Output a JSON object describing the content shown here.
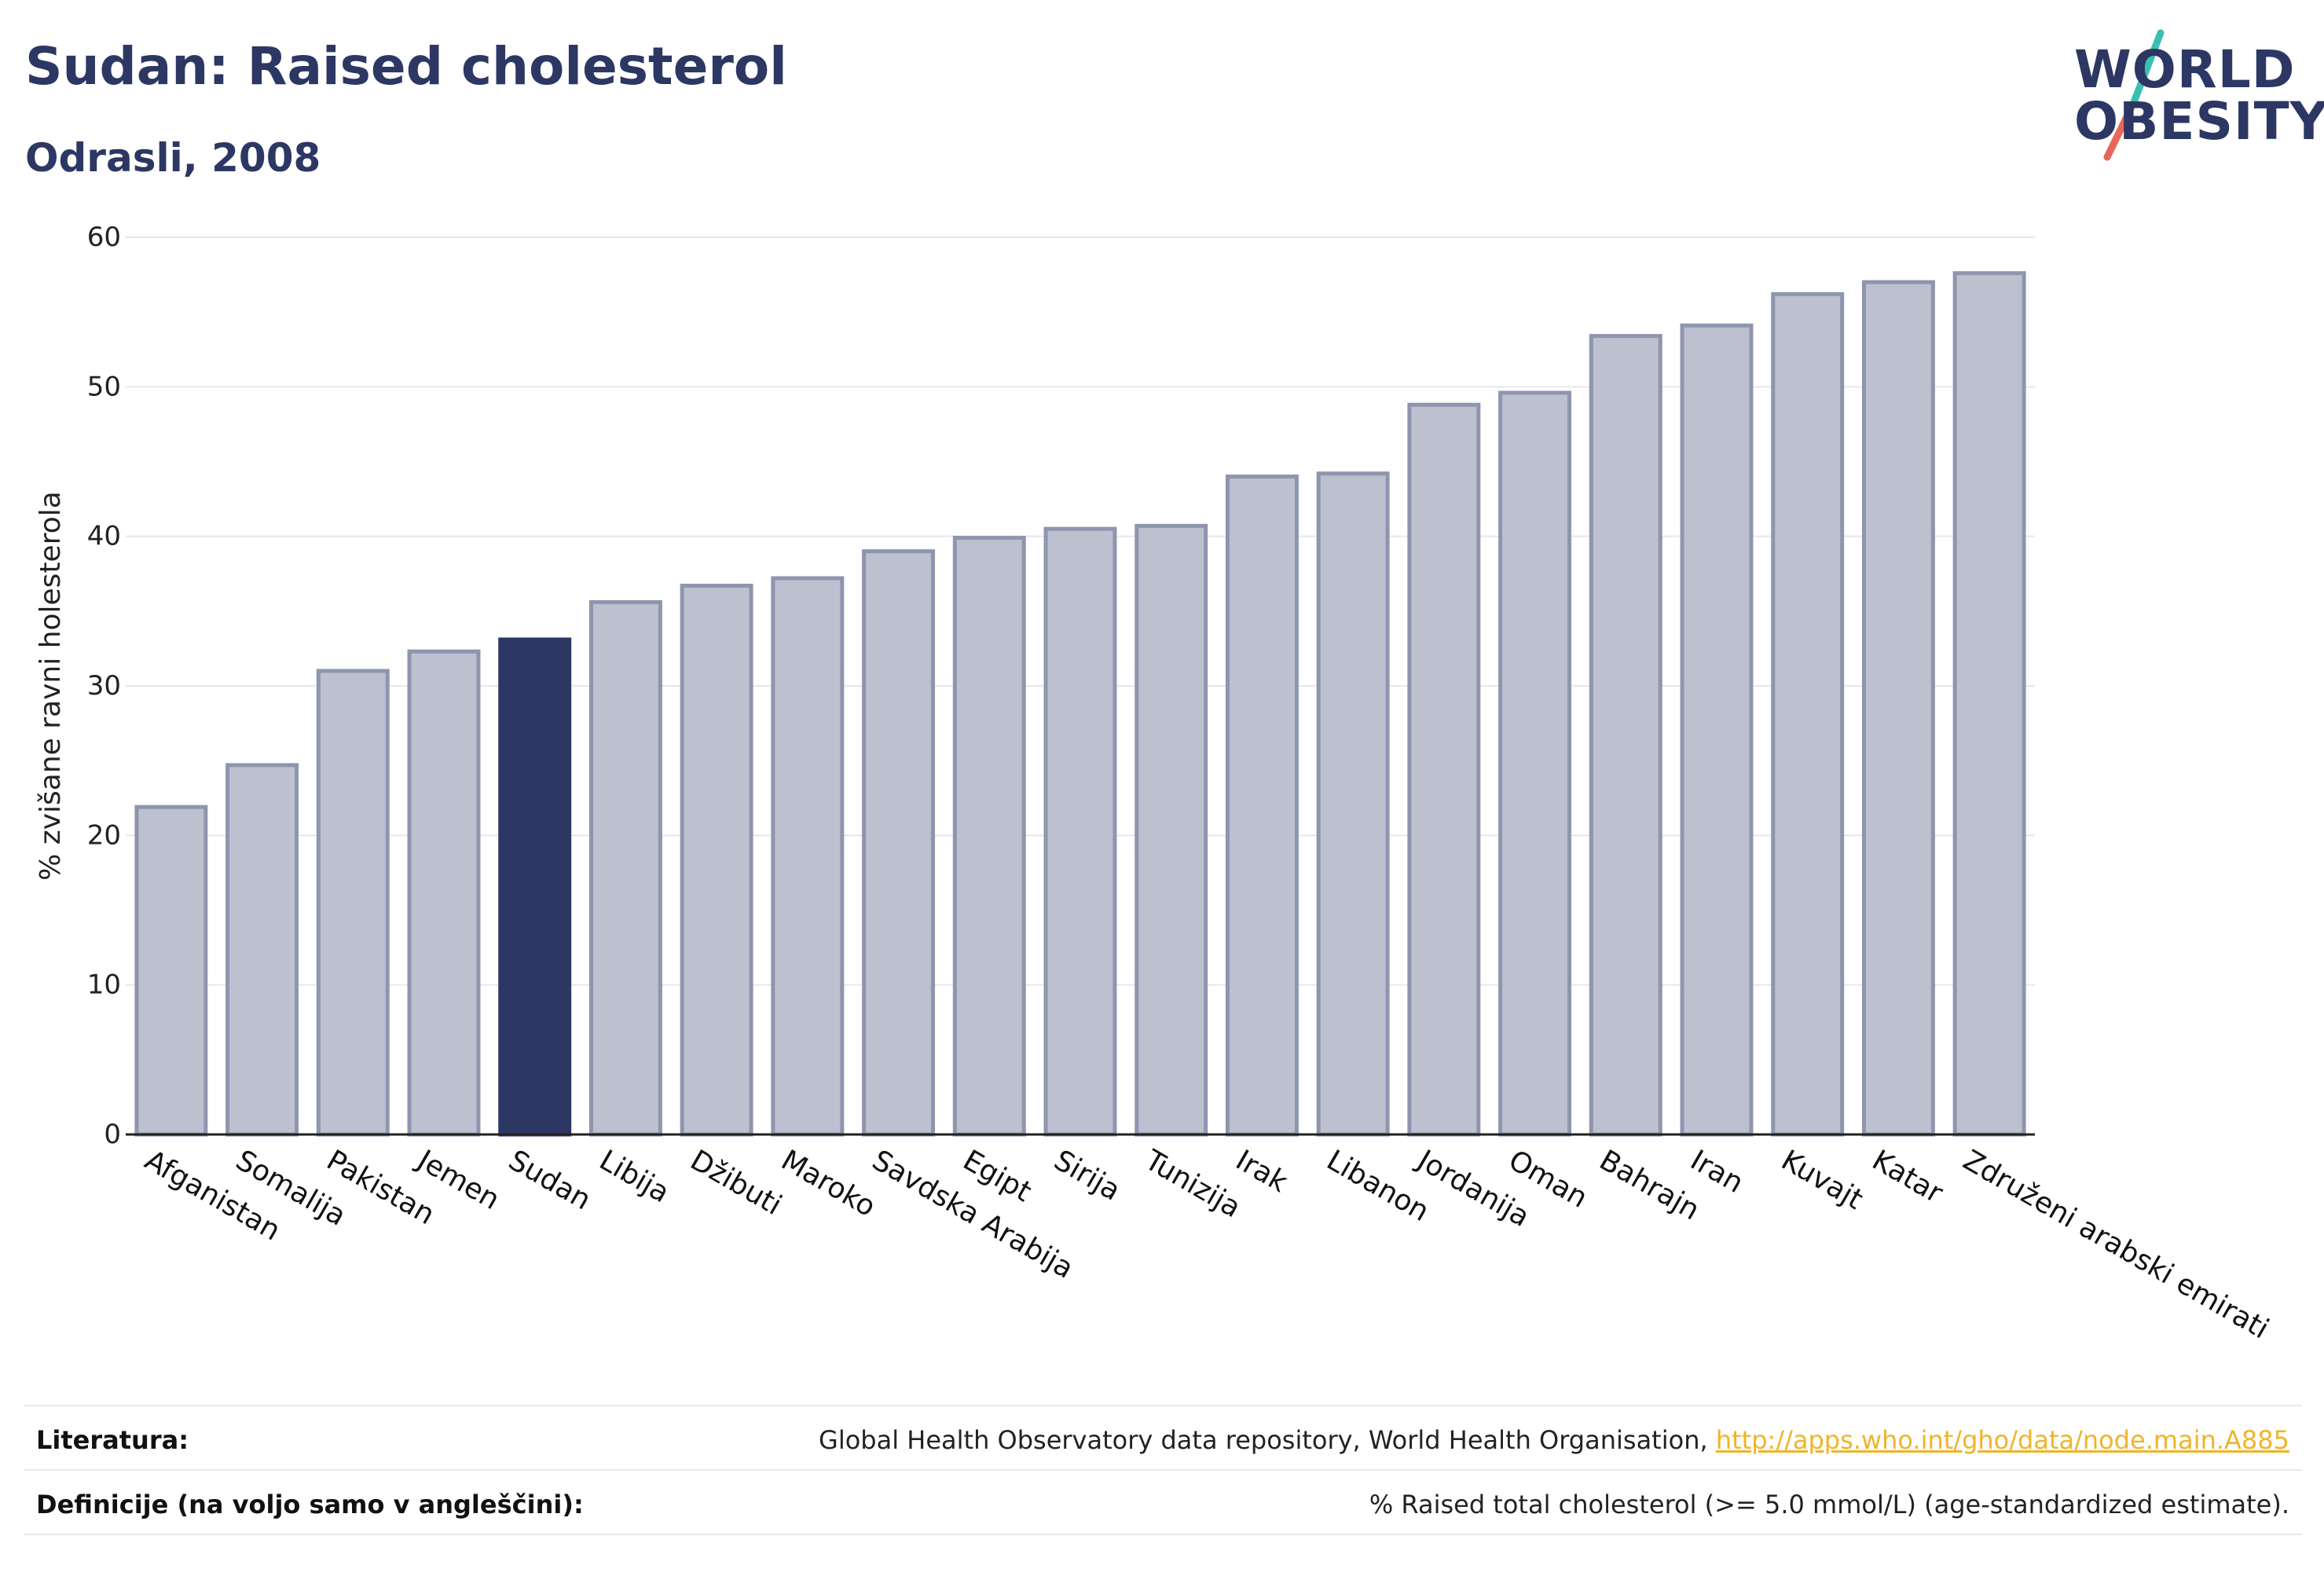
{
  "header": {
    "title": "Sudan: Raised cholesterol",
    "subtitle": "Odrasli, 2008"
  },
  "logo": {
    "line1": "WORLD",
    "line2": "OBESITY",
    "colors": {
      "text": "#2c3763",
      "slash_top": "#3bbfb2",
      "slash_bottom": "#e8665a"
    }
  },
  "chart_data": {
    "type": "bar",
    "ylabel": "% zvišane ravni holesterola",
    "ylim": [
      0,
      60
    ],
    "yticks": [
      0,
      10,
      20,
      30,
      40,
      50,
      60
    ],
    "grid": true,
    "highlight": "Sudan",
    "colors": {
      "bar": "#bcc0cf",
      "bar_border": "#8e95ae",
      "highlight": "#2c3763"
    },
    "categories": [
      "Afganistan",
      "Somalija",
      "Pakistan",
      "Jemen",
      "Sudan",
      "Libija",
      "Džibuti",
      "Maroko",
      "Savdska Arabija",
      "Egipt",
      "Sirija",
      "Tunizija",
      "Irak",
      "Libanon",
      "Jordanija",
      "Oman",
      "Bahrajn",
      "Iran",
      "Kuvajt",
      "Katar",
      "Združeni arabski emirati"
    ],
    "values": [
      21.9,
      24.7,
      31.0,
      32.3,
      33.1,
      35.6,
      36.7,
      37.2,
      39.0,
      39.9,
      40.5,
      40.7,
      44.0,
      44.2,
      48.8,
      49.6,
      53.4,
      54.1,
      56.2,
      57.0,
      57.6
    ]
  },
  "footer": {
    "sources_label": "Literatura:",
    "sources_text": "Global Health Observatory data repository, World Health Organisation, ",
    "sources_link": "http://apps.who.int/gho/data/node.main.A885",
    "definitions_label": "Definicije (na voljo samo v angleščini):",
    "definitions_text": "% Raised total cholesterol (>= 5.0 mmol/L) (age-standardized estimate)."
  }
}
